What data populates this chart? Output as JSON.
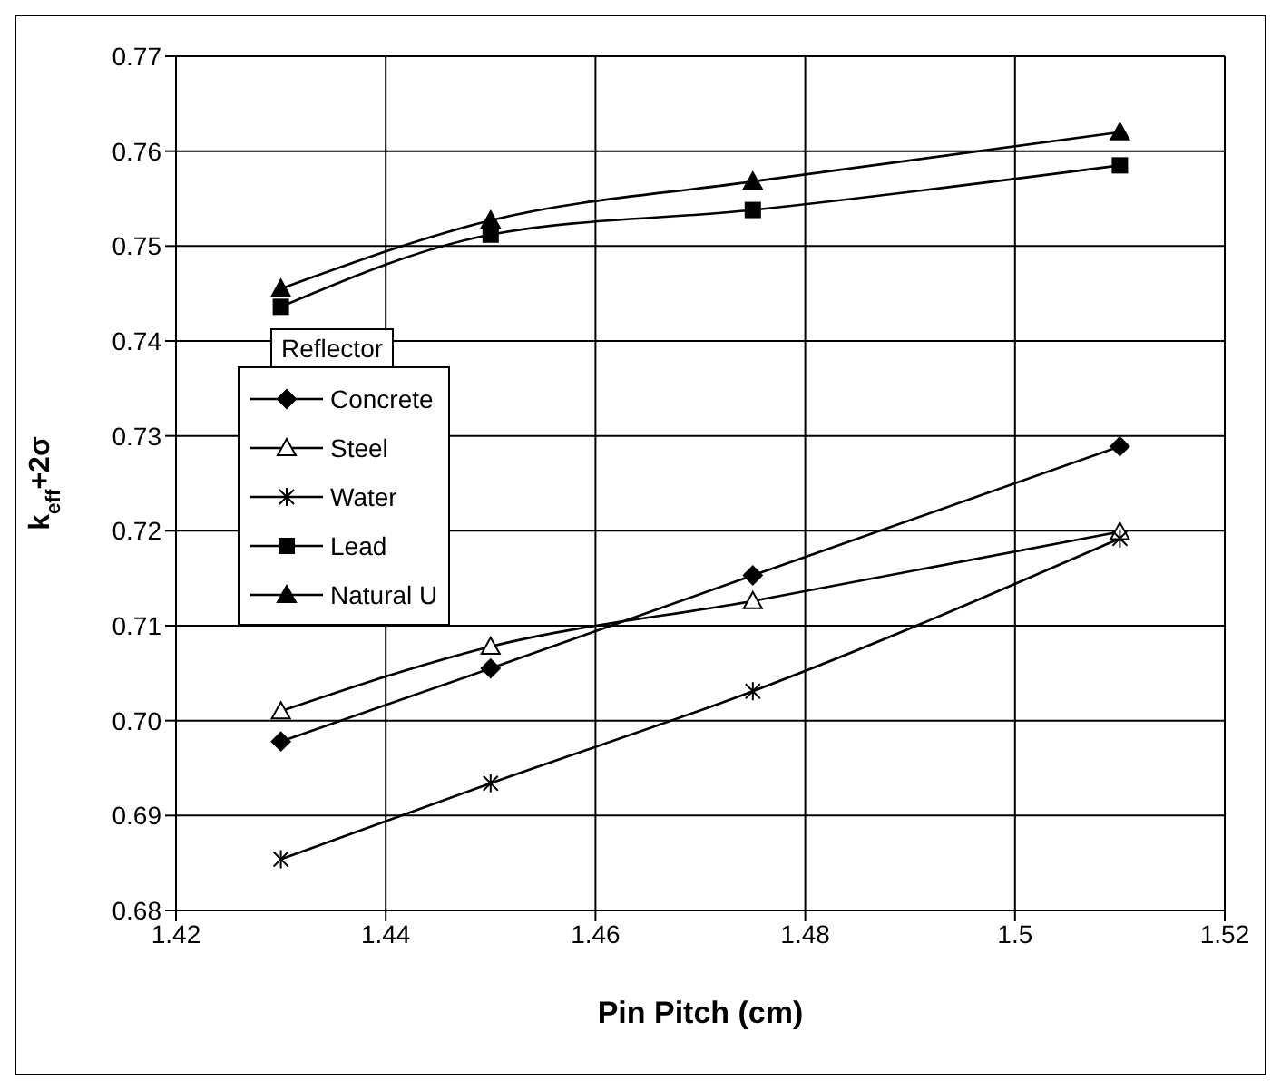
{
  "chart_data": {
    "type": "line",
    "xlabel": "Pin Pitch (cm)",
    "ylabel": "k$_{eff}$+2σ",
    "legend_title": "Reflector",
    "legend": "left",
    "grid": true,
    "x": [
      1.43,
      1.45,
      1.475,
      1.51
    ],
    "series": [
      {
        "name": "Concrete",
        "color": "#000000",
        "marker": "diamond",
        "values": [
          0.6978,
          0.7055,
          0.7153,
          0.7289
        ]
      },
      {
        "name": "Steel",
        "color": "#000000",
        "marker": "triangle",
        "values": [
          0.701,
          0.7078,
          0.7126,
          0.7199
        ]
      },
      {
        "name": "Water",
        "color": "#000000",
        "marker": "cross",
        "values": [
          0.6854,
          0.6934,
          0.7031,
          0.7192
        ]
      },
      {
        "name": "Lead",
        "color": "#000000",
        "marker": "square",
        "values": [
          0.7436,
          0.7512,
          0.7538,
          0.7585
        ]
      },
      {
        "name": "Natural U",
        "color": "#000000",
        "marker": "triangle",
        "values": [
          0.7455,
          0.7527,
          0.7568,
          0.762
        ]
      }
    ],
    "xlim": [
      1.42,
      1.52
    ],
    "xticks": [
      1.42,
      1.44,
      1.46,
      1.48,
      1.5,
      1.52
    ],
    "ylim": [
      0.68,
      0.77
    ],
    "yticks": [
      0.68,
      0.69,
      {
        "value": 0.7,
        "label": "0.70"
      },
      0.71,
      0.72,
      0.73,
      0.74,
      0.75,
      0.76,
      0.77
    ]
  }
}
